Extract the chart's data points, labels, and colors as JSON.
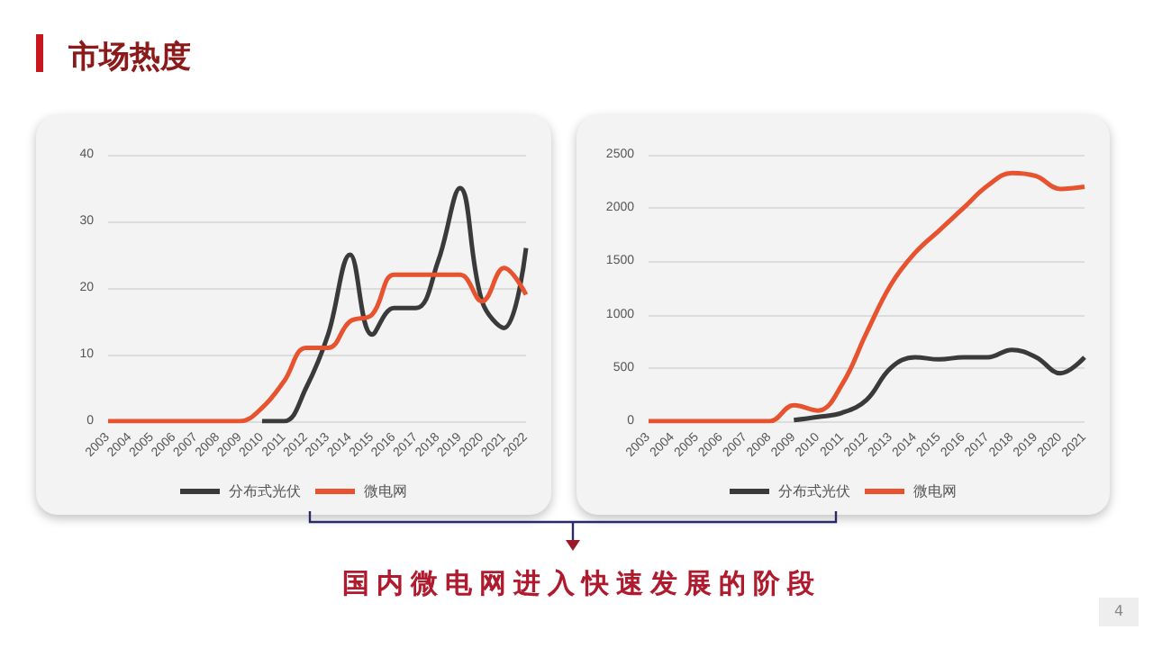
{
  "chart_data": [
    {
      "type": "line",
      "title": "市场热度",
      "categories": [
        "2003",
        "2004",
        "2005",
        "2006",
        "2007",
        "2008",
        "2009",
        "2010",
        "2011",
        "2012",
        "2013",
        "2014",
        "2015",
        "2016",
        "2017",
        "2018",
        "2019",
        "2020",
        "2021",
        "2022"
      ],
      "series": [
        {
          "name": "分布式光伏",
          "color": "#3a3a3a",
          "values": [
            null,
            null,
            null,
            null,
            null,
            null,
            null,
            0,
            0,
            5,
            13,
            25,
            13,
            17,
            17,
            24,
            35,
            18,
            14,
            26
          ]
        },
        {
          "name": "微电网",
          "color": "#e8532f",
          "values": [
            0,
            0,
            0,
            0,
            0,
            0,
            0,
            2,
            6,
            11,
            11,
            15,
            16,
            22,
            22,
            22,
            22,
            18,
            23,
            19
          ]
        }
      ],
      "ylim": [
        0,
        40
      ],
      "yticks": [
        0,
        10,
        20,
        30,
        40
      ],
      "grid": "y",
      "legend": "bottom",
      "marker": "none",
      "line_style": "solid"
    },
    {
      "type": "line",
      "categories": [
        "2003",
        "2004",
        "2005",
        "2006",
        "2007",
        "2008",
        "2009",
        "2010",
        "2011",
        "2012",
        "2013",
        "2014",
        "2015",
        "2016",
        "2017",
        "2018",
        "2019",
        "2020",
        "2021"
      ],
      "series": [
        {
          "name": "分布式光伏",
          "color": "#3a3a3a",
          "values": [
            null,
            null,
            null,
            null,
            null,
            null,
            10,
            40,
            80,
            200,
            500,
            600,
            580,
            600,
            600,
            670,
            600,
            450,
            600
          ]
        },
        {
          "name": "微电网",
          "color": "#e8532f",
          "values": [
            0,
            0,
            0,
            0,
            0,
            0,
            150,
            100,
            350,
            830,
            1280,
            1580,
            1790,
            2000,
            2210,
            2330,
            2300,
            2180,
            2200
          ]
        }
      ],
      "ylim": [
        0,
        2500
      ],
      "yticks": [
        0,
        500,
        1000,
        1500,
        2000,
        2500
      ],
      "grid": "y",
      "legend": "bottom",
      "marker": "none",
      "line_style": "solid",
      "annotations": [
        "国内微电网进入快速发展的阶段",
        "4"
      ]
    }
  ]
}
